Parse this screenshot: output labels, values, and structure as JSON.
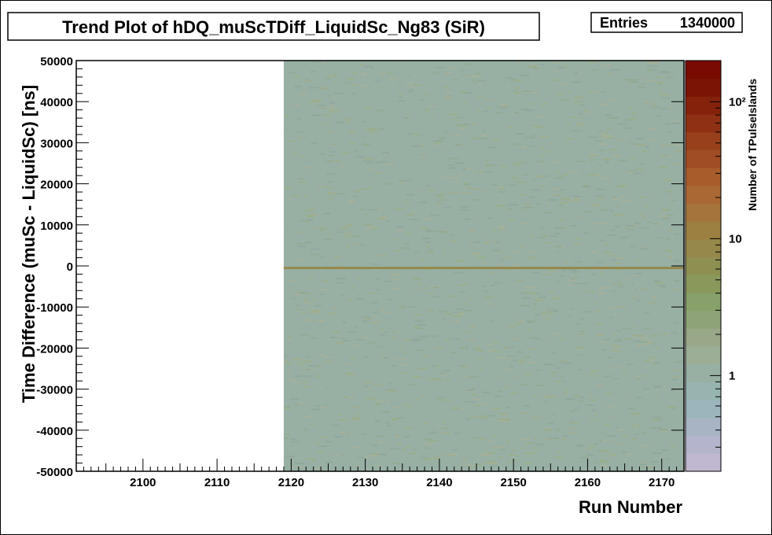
{
  "chart_data": {
    "type": "heatmap",
    "title": "Trend Plot of hDQ_muScTDiff_LiquidSc_Ng83 (SiR)",
    "stats": {
      "label": "Entries",
      "value": "1340000"
    },
    "xlabel": "Run Number",
    "ylabel": "Time Difference (muSc - LiquidSc) [ns]",
    "zlabel": "Number of TPulseIslands",
    "xlim": [
      2091,
      2173
    ],
    "ylim": [
      -50000,
      50000
    ],
    "z_scale": "log",
    "zlim": [
      0.2,
      200
    ],
    "x_ticks": [
      2100,
      2110,
      2120,
      2130,
      2140,
      2150,
      2160,
      2170
    ],
    "x_tick_labels": [
      "2100",
      "2110",
      "2120",
      "2130",
      "2140",
      "2150",
      "2160",
      "2170"
    ],
    "y_ticks": [
      50000,
      40000,
      30000,
      20000,
      10000,
      0,
      -10000,
      -20000,
      -30000,
      -40000,
      -50000
    ],
    "y_tick_labels": [
      "50000",
      "40000",
      "30000",
      "20000",
      "10000",
      "0",
      "-10000",
      "-20000",
      "-30000",
      "-40000",
      "-50000"
    ],
    "z_tick_labels": [
      "1",
      "10",
      "10²"
    ],
    "filled_run_range": [
      2119,
      2173
    ],
    "background_count": 1,
    "peak": {
      "y": -500,
      "count": 8
    },
    "palette": [
      "#c0b8d0",
      "#b4b4cc",
      "#a8b4c4",
      "#9cb4bc",
      "#98b4b0",
      "#98b0a4",
      "#9cae96",
      "#98a888",
      "#8ea478",
      "#88a06a",
      "#8a985c",
      "#8e9052",
      "#96884a",
      "#9c8042",
      "#a4743c",
      "#aa6834",
      "#a85c2c",
      "#a04c24",
      "#98401c",
      "#8e3014",
      "#84220c",
      "#7c1406",
      "#780a02"
    ]
  }
}
